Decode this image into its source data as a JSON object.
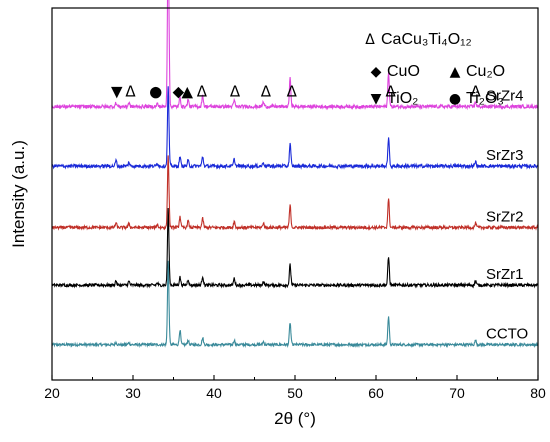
{
  "chart_data": {
    "type": "line",
    "title": "",
    "xlabel": "2θ (°)",
    "ylabel": "Intensity (a.u.)",
    "xlim": [
      20,
      80
    ],
    "xticks": [
      20,
      30,
      40,
      50,
      60,
      70,
      80
    ],
    "yticks_shown": false,
    "peaks_2theta": [
      27.9,
      29.5,
      33.0,
      34.35,
      35.8,
      36.8,
      38.6,
      42.5,
      46.1,
      49.4,
      61.55,
      72.3
    ],
    "series": [
      {
        "name": "CCTO",
        "color": "#3a8a9a",
        "baseline": 0.095,
        "noise": 0.0035,
        "peak_heights": [
          0.006,
          0.005,
          0.0,
          0.225,
          0.04,
          0.012,
          0.018,
          0.012,
          0.008,
          0.06,
          0.075,
          0.012
        ]
      },
      {
        "name": "SrZr1",
        "color": "#000000",
        "baseline": 0.255,
        "noise": 0.004,
        "peak_heights": [
          0.012,
          0.01,
          0.006,
          0.205,
          0.022,
          0.016,
          0.024,
          0.018,
          0.01,
          0.055,
          0.075,
          0.012
        ]
      },
      {
        "name": "SrZr2",
        "color": "#c03028",
        "baseline": 0.41,
        "noise": 0.004,
        "peak_heights": [
          0.012,
          0.01,
          0.008,
          0.195,
          0.03,
          0.018,
          0.024,
          0.016,
          0.012,
          0.06,
          0.075,
          0.012
        ]
      },
      {
        "name": "SrZr3",
        "color": "#1a2ad8",
        "baseline": 0.575,
        "noise": 0.0045,
        "peak_heights": [
          0.015,
          0.01,
          0.008,
          0.215,
          0.025,
          0.015,
          0.025,
          0.018,
          0.01,
          0.06,
          0.075,
          0.012
        ]
      },
      {
        "name": "SrZr4",
        "color": "#dd44dd",
        "baseline": 0.735,
        "noise": 0.0045,
        "peak_heights": [
          0.01,
          0.01,
          0.008,
          0.475,
          0.025,
          0.018,
          0.03,
          0.016,
          0.012,
          0.075,
          0.09,
          0.012
        ]
      }
    ],
    "phase_markers": [
      {
        "symbol": "▼",
        "x": 28.0
      },
      {
        "symbol": "Δ",
        "x": 29.7
      },
      {
        "symbol": "●",
        "x": 32.8
      },
      {
        "symbol": "◆",
        "x": 35.6
      },
      {
        "symbol": "▲",
        "x": 36.7
      },
      {
        "symbol": "Δ",
        "x": 38.5
      },
      {
        "symbol": "Δ",
        "x": 42.6
      },
      {
        "symbol": "Δ",
        "x": 46.4
      },
      {
        "symbol": "Δ",
        "x": 49.6
      },
      {
        "symbol": "Δ",
        "x": 61.8
      },
      {
        "symbol": "Δ",
        "x": 72.3
      }
    ],
    "top_marker": {
      "symbol": "Δ",
      "x": 34.35
    },
    "legend": {
      "placement": "top-right",
      "items": [
        {
          "symbol": "Δ",
          "label": "CaCu₃Ti₄O₁₂"
        },
        {
          "symbol": "◆",
          "label": "CuO"
        },
        {
          "symbol": "▲",
          "label": "Cu₂O"
        },
        {
          "symbol": "▼",
          "label": "TiO₂"
        },
        {
          "symbol": "●",
          "label": "Ti₂O₃"
        }
      ]
    }
  }
}
